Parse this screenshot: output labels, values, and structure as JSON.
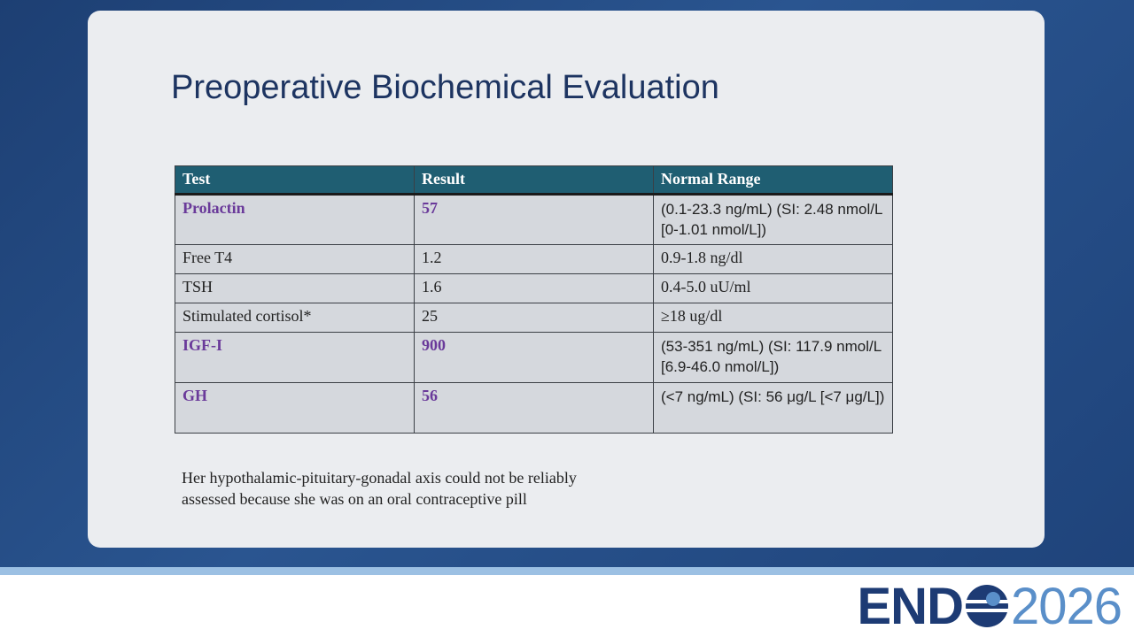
{
  "slide": {
    "title": "Preoperative Biochemical Evaluation",
    "table": {
      "header": [
        "Test",
        "Result",
        "Normal Range"
      ],
      "rows": [
        [
          "Prolactin",
          "57",
          "(0.1-23.3 ng/mL) (SI: 2.48 nmol/L [0-1.01 nmol/L])"
        ],
        [
          "Free T4",
          "1.2",
          "0.9-1.8 ng/dl"
        ],
        [
          "TSH",
          "1.6",
          "0.4-5.0 uU/ml"
        ],
        [
          "Stimulated cortisol*",
          "25",
          "≥18 ug/dl"
        ],
        [
          "IGF-I",
          "900",
          "(53-351 ng/mL) (SI: 117.9 nmol/L [6.9-46.0 nmol/L])"
        ],
        [
          "GH",
          "56",
          "(<7 ng/mL) (SI: 56 μg/L [<7 μg/L])"
        ]
      ]
    },
    "note": [
      "Her hypothalamic-pituitary-gonadal axis could not be reliably",
      "assessed because she was on an oral contraceptive pill"
    ]
  },
  "logo": {
    "left": "END",
    "right": "2026"
  }
}
